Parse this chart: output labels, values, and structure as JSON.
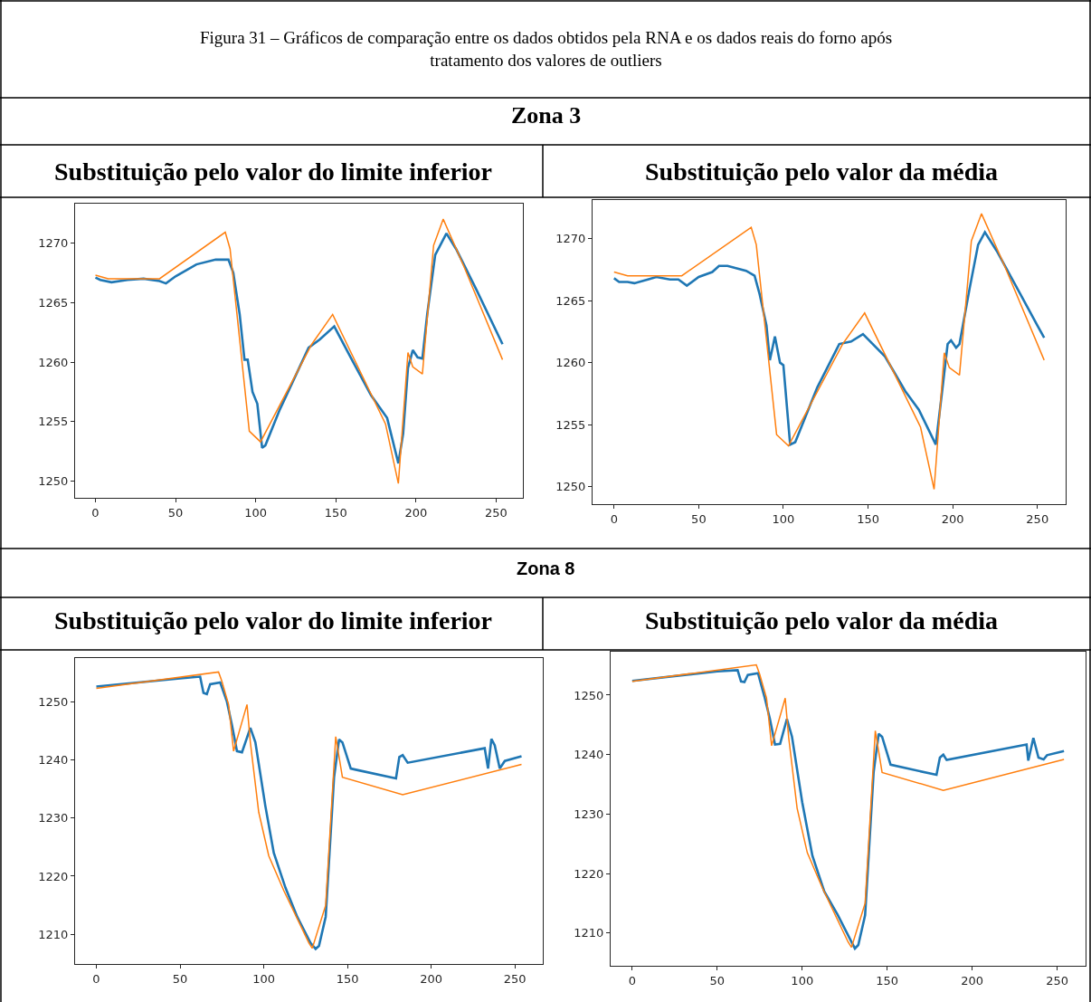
{
  "chart_data": [
    {
      "type": "line",
      "title": "Substituição pelo valor do limite inferior",
      "annotations": [
        "Figura 31 – Gráficos de comparação entre os dados obtidos pela RNA e os dados reais do forno após tratamento dos valores de outliers",
        "Zona 3"
      ],
      "xlim": [
        -12.7,
        266.7
      ],
      "ylim": [
        1248.6,
        1273.3
      ],
      "xticks": [
        0,
        50,
        100,
        150,
        200,
        250
      ],
      "yticks": [
        1250,
        1255,
        1260,
        1265,
        1270
      ],
      "series": [
        {
          "color": "#1f77b4",
          "x": [
            0,
            3,
            10,
            20,
            30,
            40,
            44,
            50,
            63,
            75,
            83,
            86,
            90,
            93,
            95,
            98,
            101,
            104,
            106,
            115,
            133,
            140,
            149,
            160,
            172,
            182,
            189,
            192,
            195,
            198,
            201,
            204,
            207,
            212,
            219,
            225,
            238,
            254
          ],
          "values": [
            1267.1,
            1266.9,
            1266.7,
            1266.9,
            1267,
            1266.8,
            1266.6,
            1267.2,
            1268.2,
            1268.6,
            1268.6,
            1267.5,
            1264,
            1260.2,
            1260.2,
            1257.5,
            1256.5,
            1252.8,
            1253,
            1256,
            1261.2,
            1261.9,
            1263,
            1260.2,
            1257.2,
            1255.3,
            1251.5,
            1254,
            1259.5,
            1261,
            1260.4,
            1260.3,
            1264,
            1269,
            1270.8,
            1269.5,
            1266,
            1261.5
          ]
        },
        {
          "color": "#ff7f0e",
          "x": [
            0,
            8,
            40,
            81,
            84,
            96,
            103,
            135,
            148,
            181,
            189,
            195,
            198,
            204,
            211,
            217,
            230,
            254
          ],
          "values": [
            1267.3,
            1267,
            1267,
            1270.9,
            1269.5,
            1254.2,
            1253.3,
            1261.5,
            1264,
            1254.8,
            1249.8,
            1260.8,
            1259.6,
            1259,
            1269.8,
            1272,
            1268,
            1260.2
          ]
        }
      ]
    },
    {
      "type": "line",
      "title": "Substituição pelo valor da média",
      "xlim": [
        -12.7,
        266.7
      ],
      "ylim": [
        1248.6,
        1273.1
      ],
      "xticks": [
        0,
        50,
        100,
        150,
        200,
        250
      ],
      "yticks": [
        1250,
        1255,
        1260,
        1265,
        1270
      ],
      "series": [
        {
          "color": "#1f77b4",
          "x": [
            0,
            3,
            8,
            12,
            20,
            25,
            33,
            38,
            43,
            50,
            58,
            62,
            67,
            78,
            83,
            86,
            90,
            92,
            95,
            98,
            100,
            104,
            107,
            120,
            133,
            140,
            147,
            160,
            172,
            180,
            190,
            194,
            197,
            199,
            202,
            204,
            210,
            215,
            219,
            226,
            240,
            250,
            254
          ],
          "values": [
            1266.8,
            1266.5,
            1266.5,
            1266.4,
            1266.7,
            1266.9,
            1266.7,
            1266.7,
            1266.2,
            1266.9,
            1267.3,
            1267.8,
            1267.8,
            1267.4,
            1267,
            1265.5,
            1263,
            1260.2,
            1262.1,
            1260,
            1259.8,
            1253.4,
            1253.6,
            1258,
            1261.5,
            1261.7,
            1262.3,
            1260.5,
            1257.7,
            1256.2,
            1253.4,
            1258,
            1261.5,
            1261.8,
            1261.2,
            1261.5,
            1266,
            1269.5,
            1270.5,
            1269,
            1265.5,
            1263,
            1262
          ]
        },
        {
          "color": "#ff7f0e",
          "x": [
            0,
            8,
            40,
            81,
            84,
            96,
            103,
            135,
            148,
            181,
            189,
            195,
            198,
            204,
            211,
            217,
            230,
            254
          ],
          "values": [
            1267.3,
            1267,
            1267,
            1270.9,
            1269.5,
            1254.2,
            1253.3,
            1261.5,
            1264,
            1254.8,
            1249.8,
            1260.8,
            1259.6,
            1259,
            1269.8,
            1272,
            1268,
            1260.2
          ]
        }
      ]
    },
    {
      "type": "line",
      "title": "Substituição pelo valor do limite inferior",
      "annotations": [
        "Zona 8"
      ],
      "xlim": [
        -12.7,
        266.7
      ],
      "ylim": [
        1204.9,
        1257.5
      ],
      "xticks": [
        0,
        50,
        100,
        150,
        200,
        250
      ],
      "yticks": [
        1210,
        1220,
        1230,
        1240,
        1250
      ],
      "series": [
        {
          "color": "#1f77b4",
          "x": [
            0,
            50,
            62,
            64,
            66,
            68,
            74,
            78,
            81,
            84,
            87,
            92,
            95,
            101,
            106,
            113,
            120,
            128,
            131,
            133,
            137,
            142,
            145,
            147,
            152,
            155,
            179,
            181,
            183,
            186,
            232,
            234,
            236,
            238,
            241,
            244,
            254
          ],
          "values": [
            1252.6,
            1254,
            1254.3,
            1251.5,
            1251.3,
            1253,
            1253.3,
            1250,
            1246,
            1241.5,
            1241.3,
            1245.5,
            1243,
            1232,
            1224,
            1218,
            1213,
            1208.5,
            1207.5,
            1208,
            1213,
            1237,
            1243.5,
            1243,
            1238.5,
            1238.3,
            1236.8,
            1240.5,
            1240.8,
            1239.5,
            1242,
            1238.5,
            1243.6,
            1242.5,
            1238.5,
            1239.8,
            1240.6
          ]
        },
        {
          "color": "#ff7f0e",
          "x": [
            0,
            73,
            75,
            79,
            82,
            90,
            92,
            97,
            103,
            112,
            127,
            129,
            137,
            143,
            147,
            183,
            254
          ],
          "values": [
            1252.3,
            1255.1,
            1253.5,
            1249.5,
            1241.5,
            1249.5,
            1243,
            1231,
            1223.5,
            1217.5,
            1208.5,
            1207.6,
            1215,
            1244,
            1237,
            1234,
            1239.2
          ]
        }
      ]
    },
    {
      "type": "line",
      "title": "Substituição pelo valor da média",
      "xlim": [
        -12.7,
        266.7
      ],
      "ylim": [
        1204.5,
        1257.3
      ],
      "xticks": [
        0,
        50,
        100,
        150,
        200,
        250
      ],
      "yticks": [
        1210,
        1220,
        1230,
        1240,
        1250
      ],
      "series": [
        {
          "color": "#1f77b4",
          "x": [
            0,
            50,
            62,
            64,
            66,
            68,
            74,
            78,
            81,
            84,
            87,
            91,
            94,
            100,
            106,
            113,
            121,
            129,
            131,
            133,
            137,
            142,
            145,
            147,
            152,
            179,
            181,
            183,
            185,
            232,
            233,
            236,
            239,
            242,
            244,
            254
          ],
          "values": [
            1252.4,
            1254,
            1254.2,
            1252.3,
            1252.2,
            1253.4,
            1253.7,
            1249.5,
            1246,
            1241.7,
            1241.8,
            1246,
            1243,
            1232,
            1223,
            1217,
            1213,
            1208.5,
            1207.4,
            1208,
            1213,
            1237,
            1243.5,
            1243,
            1238.3,
            1236.6,
            1239.5,
            1240,
            1239.1,
            1241.7,
            1239,
            1242.8,
            1239.5,
            1239.2,
            1239.9,
            1240.6
          ]
        },
        {
          "color": "#ff7f0e",
          "x": [
            0,
            73,
            75,
            79,
            82,
            90,
            92,
            97,
            103,
            112,
            127,
            129,
            137,
            143,
            147,
            183,
            254
          ],
          "values": [
            1252.3,
            1255.1,
            1253.5,
            1249.5,
            1241.5,
            1249.5,
            1243,
            1231,
            1223.5,
            1217.5,
            1208.5,
            1207.6,
            1215,
            1244,
            1237,
            1234,
            1239.2
          ]
        }
      ]
    }
  ]
}
